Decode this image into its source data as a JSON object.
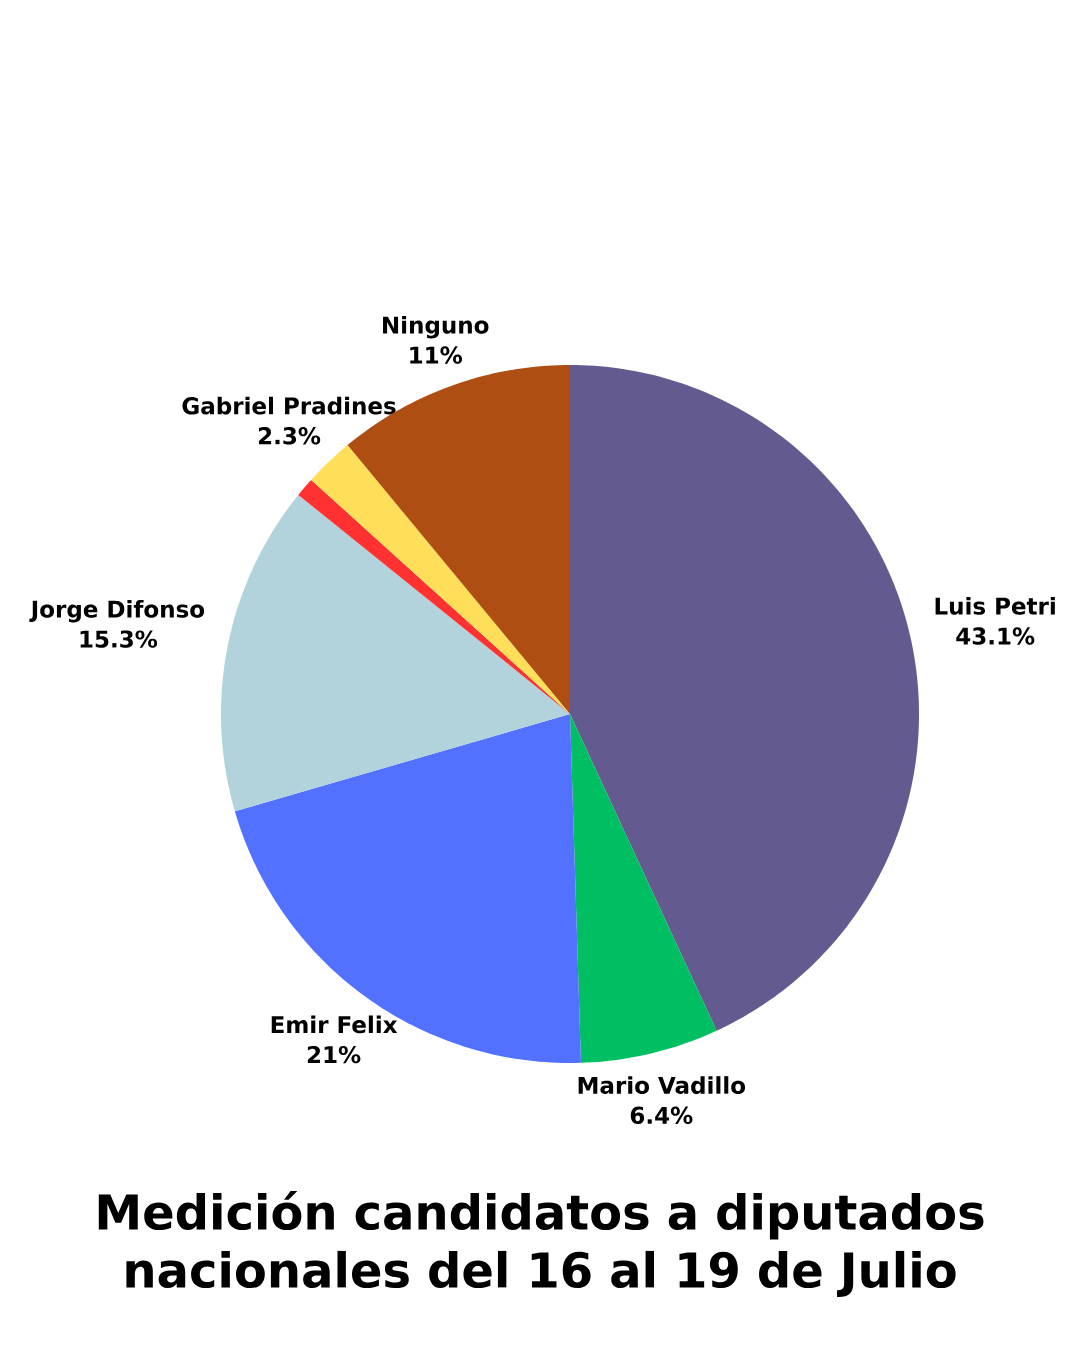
{
  "chart_data": {
    "type": "pie",
    "title": "Medición candidatos a diputados nacionales del 16 al 19 de Julio",
    "categories": [
      "Luis Petri",
      "Mario Vadillo",
      "Emir Felix",
      "Jorge Difonso",
      null,
      "Gabriel Pradines",
      "Ninguno"
    ],
    "values": [
      43.1,
      6.4,
      21,
      15.3,
      0.9,
      2.3,
      11
    ],
    "value_labels": [
      "43.1%",
      "6.4%",
      "21%",
      "15.3%",
      null,
      "2.3%",
      "11%"
    ],
    "colors": [
      "#635b8f",
      "#00bf63",
      "#5271ff",
      "#b2d3db",
      "#ff3131",
      "#ffde59",
      "#ae4e12"
    ]
  }
}
